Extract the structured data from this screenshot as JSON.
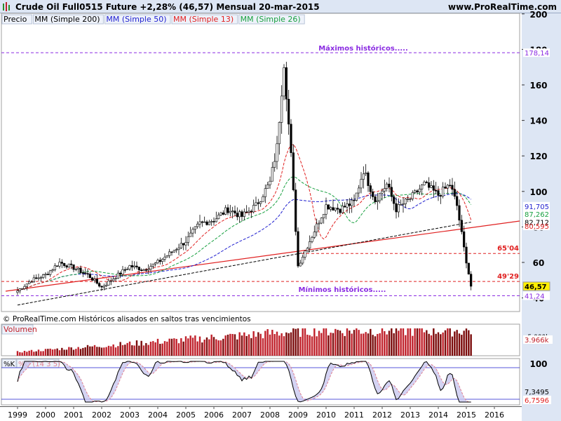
{
  "header": {
    "title": "Crude Oil Full0515 Future",
    "change": "+2,28% (46,57)",
    "period": "Mensual",
    "date": "20-mar-2015",
    "site": "www.ProRealTime.com"
  },
  "legend": [
    {
      "label": "Precio",
      "color": "#000000"
    },
    {
      "label": "MM (Simple 200)",
      "color": "#000000"
    },
    {
      "label": "MM (Simple 50)",
      "color": "#1f1fcf"
    },
    {
      "label": "MM (Simple 13)",
      "color": "#e02020"
    },
    {
      "label": "MM (Simple 26)",
      "color": "#18a040"
    }
  ],
  "annotations": {
    "max_label": "Máximos históricos.....",
    "min_label": "Mínimos históricos.....",
    "footer": "© ProRealTime.com Históricos alisados en saltos tras vencimientos"
  },
  "price_axis": {
    "ticks": [
      "200",
      "180",
      "160",
      "140",
      "120",
      "100",
      "80",
      "60",
      "40"
    ],
    "tags": [
      {
        "text": "178,14",
        "value": 178.14,
        "bg": "#ffffff",
        "fg": "#8a2be2"
      },
      {
        "text": "91,705",
        "value": 91.705,
        "bg": "#ffffff",
        "fg": "#1f1fcf"
      },
      {
        "text": "87,262",
        "value": 87.262,
        "bg": "#ffffff",
        "fg": "#18a040"
      },
      {
        "text": "82,712",
        "value": 82.712,
        "bg": "#ffffff",
        "fg": "#000000"
      },
      {
        "text": "80,595",
        "value": 80.595,
        "bg": "#ffffff",
        "fg": "#e02020"
      },
      {
        "text": "46,57",
        "value": 46.57,
        "bg": "#ffef00",
        "fg": "#000000"
      },
      {
        "text": "41,24",
        "value": 41.24,
        "bg": "#ffffff",
        "fg": "#8a2be2"
      }
    ],
    "level_labels": [
      {
        "text": "65'04",
        "value": 65.04
      },
      {
        "text": "49'29",
        "value": 49.29
      }
    ]
  },
  "volume": {
    "label": "Volumen",
    "axis_top": "5.000k",
    "value_tag": "3.966k"
  },
  "stochastic": {
    "label_k": "%K",
    "label_d": "%D (14 3 5)",
    "axis_top": "100",
    "tag_k": "7,3495",
    "tag_d": "6,7596"
  },
  "x_axis": [
    "1999",
    "2000",
    "2001",
    "2002",
    "2003",
    "2004",
    "2005",
    "2006",
    "2007",
    "2008",
    "2009",
    "2010",
    "2011",
    "2012",
    "2013",
    "2014",
    "2015",
    "2016"
  ],
  "chart_data": {
    "type": "candlestick",
    "title": "Crude Oil Full0515 Future",
    "interval": "monthly",
    "x_range": [
      "1999",
      "2016"
    ],
    "ylim": [
      36,
      202
    ],
    "price_series_approx": {
      "x": [
        "1999-01",
        "1999-07",
        "2000-01",
        "2000-07",
        "2001-01",
        "2001-07",
        "2002-01",
        "2002-07",
        "2003-01",
        "2003-07",
        "2004-01",
        "2004-07",
        "2005-01",
        "2005-07",
        "2006-01",
        "2006-07",
        "2007-01",
        "2007-07",
        "2008-01",
        "2008-04",
        "2008-07",
        "2008-10",
        "2009-01",
        "2009-07",
        "2010-01",
        "2010-07",
        "2011-01",
        "2011-05",
        "2011-10",
        "2012-03",
        "2012-07",
        "2013-01",
        "2013-07",
        "2014-01",
        "2014-06",
        "2014-09",
        "2014-12",
        "2015-03"
      ],
      "close": [
        44,
        50,
        53,
        60,
        57,
        53,
        46,
        52,
        58,
        56,
        60,
        66,
        72,
        82,
        84,
        90,
        86,
        92,
        105,
        125,
        173,
        120,
        58,
        75,
        92,
        90,
        94,
        112,
        95,
        104,
        90,
        96,
        104,
        98,
        104,
        92,
        68,
        46.57
      ]
    },
    "moving_averages": [
      {
        "name": "MM (Simple 200)",
        "last": 82.712
      },
      {
        "name": "MM (Simple 50)",
        "last": 91.705
      },
      {
        "name": "MM (Simple 13)",
        "last": 80.595
      },
      {
        "name": "MM (Simple 26)",
        "last": 87.262
      }
    ],
    "levels": [
      {
        "label": "Máximos históricos.....",
        "value": 178.14
      },
      {
        "label": "65'04",
        "value": 65.04
      },
      {
        "label": "49'29",
        "value": 49.29
      },
      {
        "label": "Mínimos históricos.....",
        "value": 41.24
      }
    ],
    "last_price": 46.57,
    "volume_last": "3.966k",
    "stochastic": {
      "k": 7.3495,
      "d": 6.7596
    }
  }
}
